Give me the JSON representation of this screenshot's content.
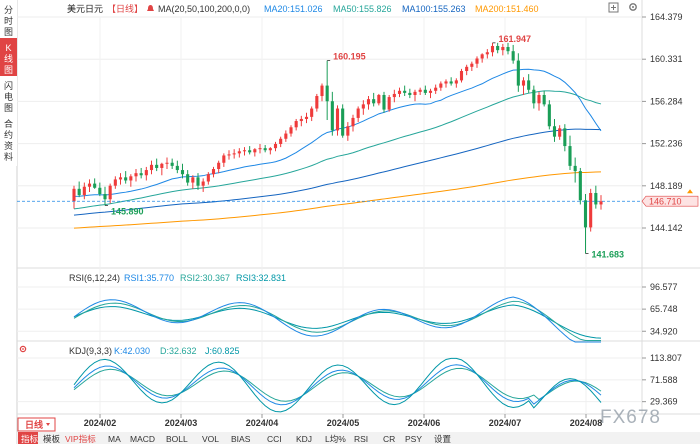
{
  "sidebar": {
    "tabs": [
      {
        "label": "分时图",
        "active": false
      },
      {
        "label": "K线图",
        "active": true
      },
      {
        "label": "闪电图",
        "active": false
      },
      {
        "label": "合约资料",
        "active": false
      }
    ]
  },
  "main_chart": {
    "symbol": "美元日元",
    "period": "【日线】",
    "ma_label": "MA(20,50,100,200,0,0)",
    "ma_readouts": [
      {
        "label": "MA20:151.026",
        "color": "#1e88e5"
      },
      {
        "label": "MA50:155.826",
        "color": "#26a69a"
      },
      {
        "label": "MA100:155.263",
        "color": "#1565c0"
      },
      {
        "label": "MA200:151.460",
        "color": "#ff9800"
      }
    ],
    "y_ticks": [
      "164.379",
      "160.331",
      "156.284",
      "152.236",
      "148.189",
      "144.142"
    ],
    "current_price": "146.710",
    "annotations": {
      "peak1": "160.195",
      "peak2": "161.947",
      "low_start": "145.890",
      "low_end": "141.683"
    }
  },
  "rsi_panel": {
    "title": "RSI(6,12,24)",
    "readouts": [
      {
        "label": "RSI1:35.770",
        "color": "#1e88e5"
      },
      {
        "label": "RSI2:30.367",
        "color": "#26a69a"
      },
      {
        "label": "RSI3:32.831",
        "color": "#0097a7"
      }
    ],
    "y_ticks": [
      "96.577",
      "65.748",
      "34.920"
    ]
  },
  "kdj_panel": {
    "title": "KDJ(9,3,3)",
    "readouts": [
      {
        "label": "K:42.030",
        "color": "#1e88e5"
      },
      {
        "label": "D:32.632",
        "color": "#26a69a"
      },
      {
        "label": "J:60.825",
        "color": "#0097a7"
      }
    ],
    "y_ticks": [
      "113.807",
      "71.588",
      "29.369"
    ]
  },
  "x_axis": {
    "period_button": "日线",
    "labels": [
      "2024/02",
      "2024/03",
      "2024/04",
      "2024/05",
      "2024/06",
      "2024/07",
      "2024/08"
    ]
  },
  "toolbar": {
    "tabs": [
      "指标",
      "模板",
      "VIP指标",
      "MA",
      "MACD",
      "BOLL",
      "VOL",
      "BIAS",
      "CCI",
      "KDJ",
      "L均%",
      "RSI",
      "CR",
      "PSY",
      "设置"
    ]
  },
  "watermark": "FX678",
  "colors": {
    "up": "#ef3b3b",
    "down": "#1a9e57",
    "ma20": "#1e88e5",
    "ma50": "#26a69a",
    "ma100": "#1565c0",
    "ma200": "#ff9800"
  },
  "chart_data": {
    "type": "candlestick",
    "title": "美元日元【日线】",
    "x_range": [
      "2024/01/18",
      "2024/08/07"
    ],
    "ylim": [
      141.0,
      164.5
    ],
    "candles_ohlc": [
      [
        146.7,
        148.2,
        146.0,
        147.9
      ],
      [
        147.9,
        148.6,
        147.1,
        147.3
      ],
      [
        147.3,
        148.5,
        146.9,
        148.1
      ],
      [
        148.1,
        148.8,
        147.6,
        148.4
      ],
      [
        148.4,
        148.9,
        147.9,
        148.0
      ],
      [
        148.0,
        148.5,
        147.2,
        147.4
      ],
      [
        147.4,
        148.1,
        146.3,
        146.9
      ],
      [
        146.9,
        148.4,
        146.5,
        148.2
      ],
      [
        148.2,
        149.1,
        147.9,
        148.8
      ],
      [
        148.8,
        149.4,
        148.3,
        149.0
      ],
      [
        149.0,
        149.6,
        148.4,
        148.7
      ],
      [
        148.7,
        149.3,
        148.1,
        149.1
      ],
      [
        149.1,
        149.8,
        148.6,
        149.4
      ],
      [
        149.4,
        149.9,
        148.9,
        149.2
      ],
      [
        149.2,
        150.0,
        148.7,
        149.7
      ],
      [
        149.7,
        150.6,
        149.3,
        150.2
      ],
      [
        150.2,
        150.8,
        149.6,
        149.9
      ],
      [
        149.9,
        150.4,
        149.2,
        150.3
      ],
      [
        150.3,
        150.9,
        149.8,
        150.4
      ],
      [
        150.4,
        150.8,
        149.8,
        150.1
      ],
      [
        150.1,
        150.6,
        149.4,
        149.7
      ],
      [
        149.7,
        150.3,
        148.9,
        149.3
      ],
      [
        149.3,
        149.7,
        148.2,
        148.5
      ],
      [
        148.5,
        149.2,
        147.9,
        149.0
      ],
      [
        149.0,
        149.4,
        147.8,
        148.2
      ],
      [
        148.2,
        148.9,
        147.6,
        148.6
      ],
      [
        148.6,
        149.5,
        148.3,
        149.3
      ],
      [
        149.3,
        150.0,
        149.0,
        149.8
      ],
      [
        149.8,
        150.6,
        149.4,
        150.4
      ],
      [
        150.4,
        151.3,
        150.0,
        151.1
      ],
      [
        151.1,
        151.6,
        150.7,
        151.2
      ],
      [
        151.2,
        151.7,
        150.8,
        151.3
      ],
      [
        151.3,
        151.8,
        150.9,
        151.5
      ],
      [
        151.5,
        151.9,
        151.1,
        151.6
      ],
      [
        151.6,
        152.0,
        151.2,
        151.4
      ],
      [
        151.4,
        151.8,
        151.0,
        151.7
      ],
      [
        151.7,
        152.2,
        151.3,
        151.8
      ],
      [
        151.8,
        152.1,
        151.4,
        151.6
      ],
      [
        151.6,
        151.9,
        151.2,
        151.8
      ],
      [
        151.8,
        152.4,
        151.5,
        152.2
      ],
      [
        152.2,
        152.9,
        151.9,
        152.7
      ],
      [
        152.7,
        153.5,
        152.4,
        153.2
      ],
      [
        153.2,
        154.0,
        152.9,
        153.8
      ],
      [
        153.8,
        154.6,
        153.5,
        154.4
      ],
      [
        154.4,
        154.9,
        153.9,
        154.6
      ],
      [
        154.6,
        155.2,
        154.2,
        154.8
      ],
      [
        154.8,
        155.8,
        154.4,
        155.6
      ],
      [
        155.6,
        157.0,
        155.3,
        156.8
      ],
      [
        156.8,
        158.0,
        156.3,
        157.8
      ],
      [
        157.8,
        160.2,
        154.5,
        156.3
      ],
      [
        156.3,
        157.2,
        153.0,
        153.5
      ],
      [
        153.5,
        155.9,
        153.0,
        155.6
      ],
      [
        155.6,
        156.0,
        152.8,
        153.0
      ],
      [
        153.0,
        154.3,
        152.5,
        153.9
      ],
      [
        153.9,
        155.0,
        153.4,
        154.7
      ],
      [
        154.7,
        155.8,
        154.3,
        155.6
      ],
      [
        155.6,
        156.4,
        155.0,
        156.0
      ],
      [
        156.0,
        156.8,
        155.5,
        156.5
      ],
      [
        156.5,
        157.1,
        155.8,
        156.1
      ],
      [
        156.1,
        157.0,
        155.9,
        156.9
      ],
      [
        156.9,
        157.2,
        155.2,
        155.5
      ],
      [
        155.5,
        156.9,
        155.3,
        156.7
      ],
      [
        156.7,
        157.4,
        156.2,
        157.0
      ],
      [
        157.0,
        157.6,
        156.7,
        157.3
      ],
      [
        157.3,
        157.8,
        156.8,
        157.1
      ],
      [
        157.1,
        157.5,
        156.6,
        156.9
      ],
      [
        156.9,
        157.4,
        156.3,
        157.2
      ],
      [
        157.2,
        157.6,
        156.9,
        157.4
      ],
      [
        157.4,
        157.8,
        156.9,
        157.1
      ],
      [
        157.1,
        157.5,
        156.6,
        157.3
      ],
      [
        157.3,
        157.9,
        157.0,
        157.6
      ],
      [
        157.6,
        158.2,
        157.3,
        158.0
      ],
      [
        158.0,
        158.4,
        157.6,
        158.2
      ],
      [
        158.2,
        158.6,
        157.8,
        158.0
      ],
      [
        158.0,
        158.5,
        157.6,
        158.3
      ],
      [
        158.3,
        159.4,
        158.1,
        159.2
      ],
      [
        159.2,
        159.8,
        158.8,
        159.6
      ],
      [
        159.6,
        160.1,
        159.2,
        159.9
      ],
      [
        159.9,
        160.6,
        159.5,
        160.4
      ],
      [
        160.4,
        160.9,
        160.0,
        160.8
      ],
      [
        160.8,
        161.3,
        160.4,
        161.0
      ],
      [
        161.0,
        161.9,
        160.6,
        161.6
      ],
      [
        161.6,
        161.9,
        160.9,
        161.2
      ],
      [
        161.2,
        161.8,
        160.7,
        161.5
      ],
      [
        161.5,
        161.9,
        160.8,
        161.1
      ],
      [
        161.1,
        161.7,
        159.9,
        160.2
      ],
      [
        160.2,
        160.9,
        157.2,
        157.8
      ],
      [
        157.8,
        158.6,
        156.9,
        158.3
      ],
      [
        158.3,
        158.9,
        157.1,
        157.4
      ],
      [
        157.4,
        157.8,
        155.6,
        156.1
      ],
      [
        156.1,
        157.2,
        155.4,
        156.9
      ],
      [
        156.9,
        157.3,
        155.8,
        156.0
      ],
      [
        156.0,
        156.4,
        153.6,
        153.9
      ],
      [
        153.9,
        154.6,
        152.4,
        152.9
      ],
      [
        152.9,
        154.0,
        152.6,
        153.7
      ],
      [
        153.7,
        154.1,
        151.5,
        152.0
      ],
      [
        152.0,
        153.0,
        149.7,
        150.1
      ],
      [
        150.1,
        150.9,
        148.5,
        149.6
      ],
      [
        149.6,
        149.9,
        146.4,
        146.8
      ],
      [
        146.8,
        147.4,
        141.7,
        144.2
      ],
      [
        144.2,
        147.9,
        143.8,
        147.5
      ],
      [
        147.5,
        148.2,
        146.0,
        146.4
      ],
      [
        146.4,
        147.3,
        145.9,
        146.7
      ]
    ]
  }
}
